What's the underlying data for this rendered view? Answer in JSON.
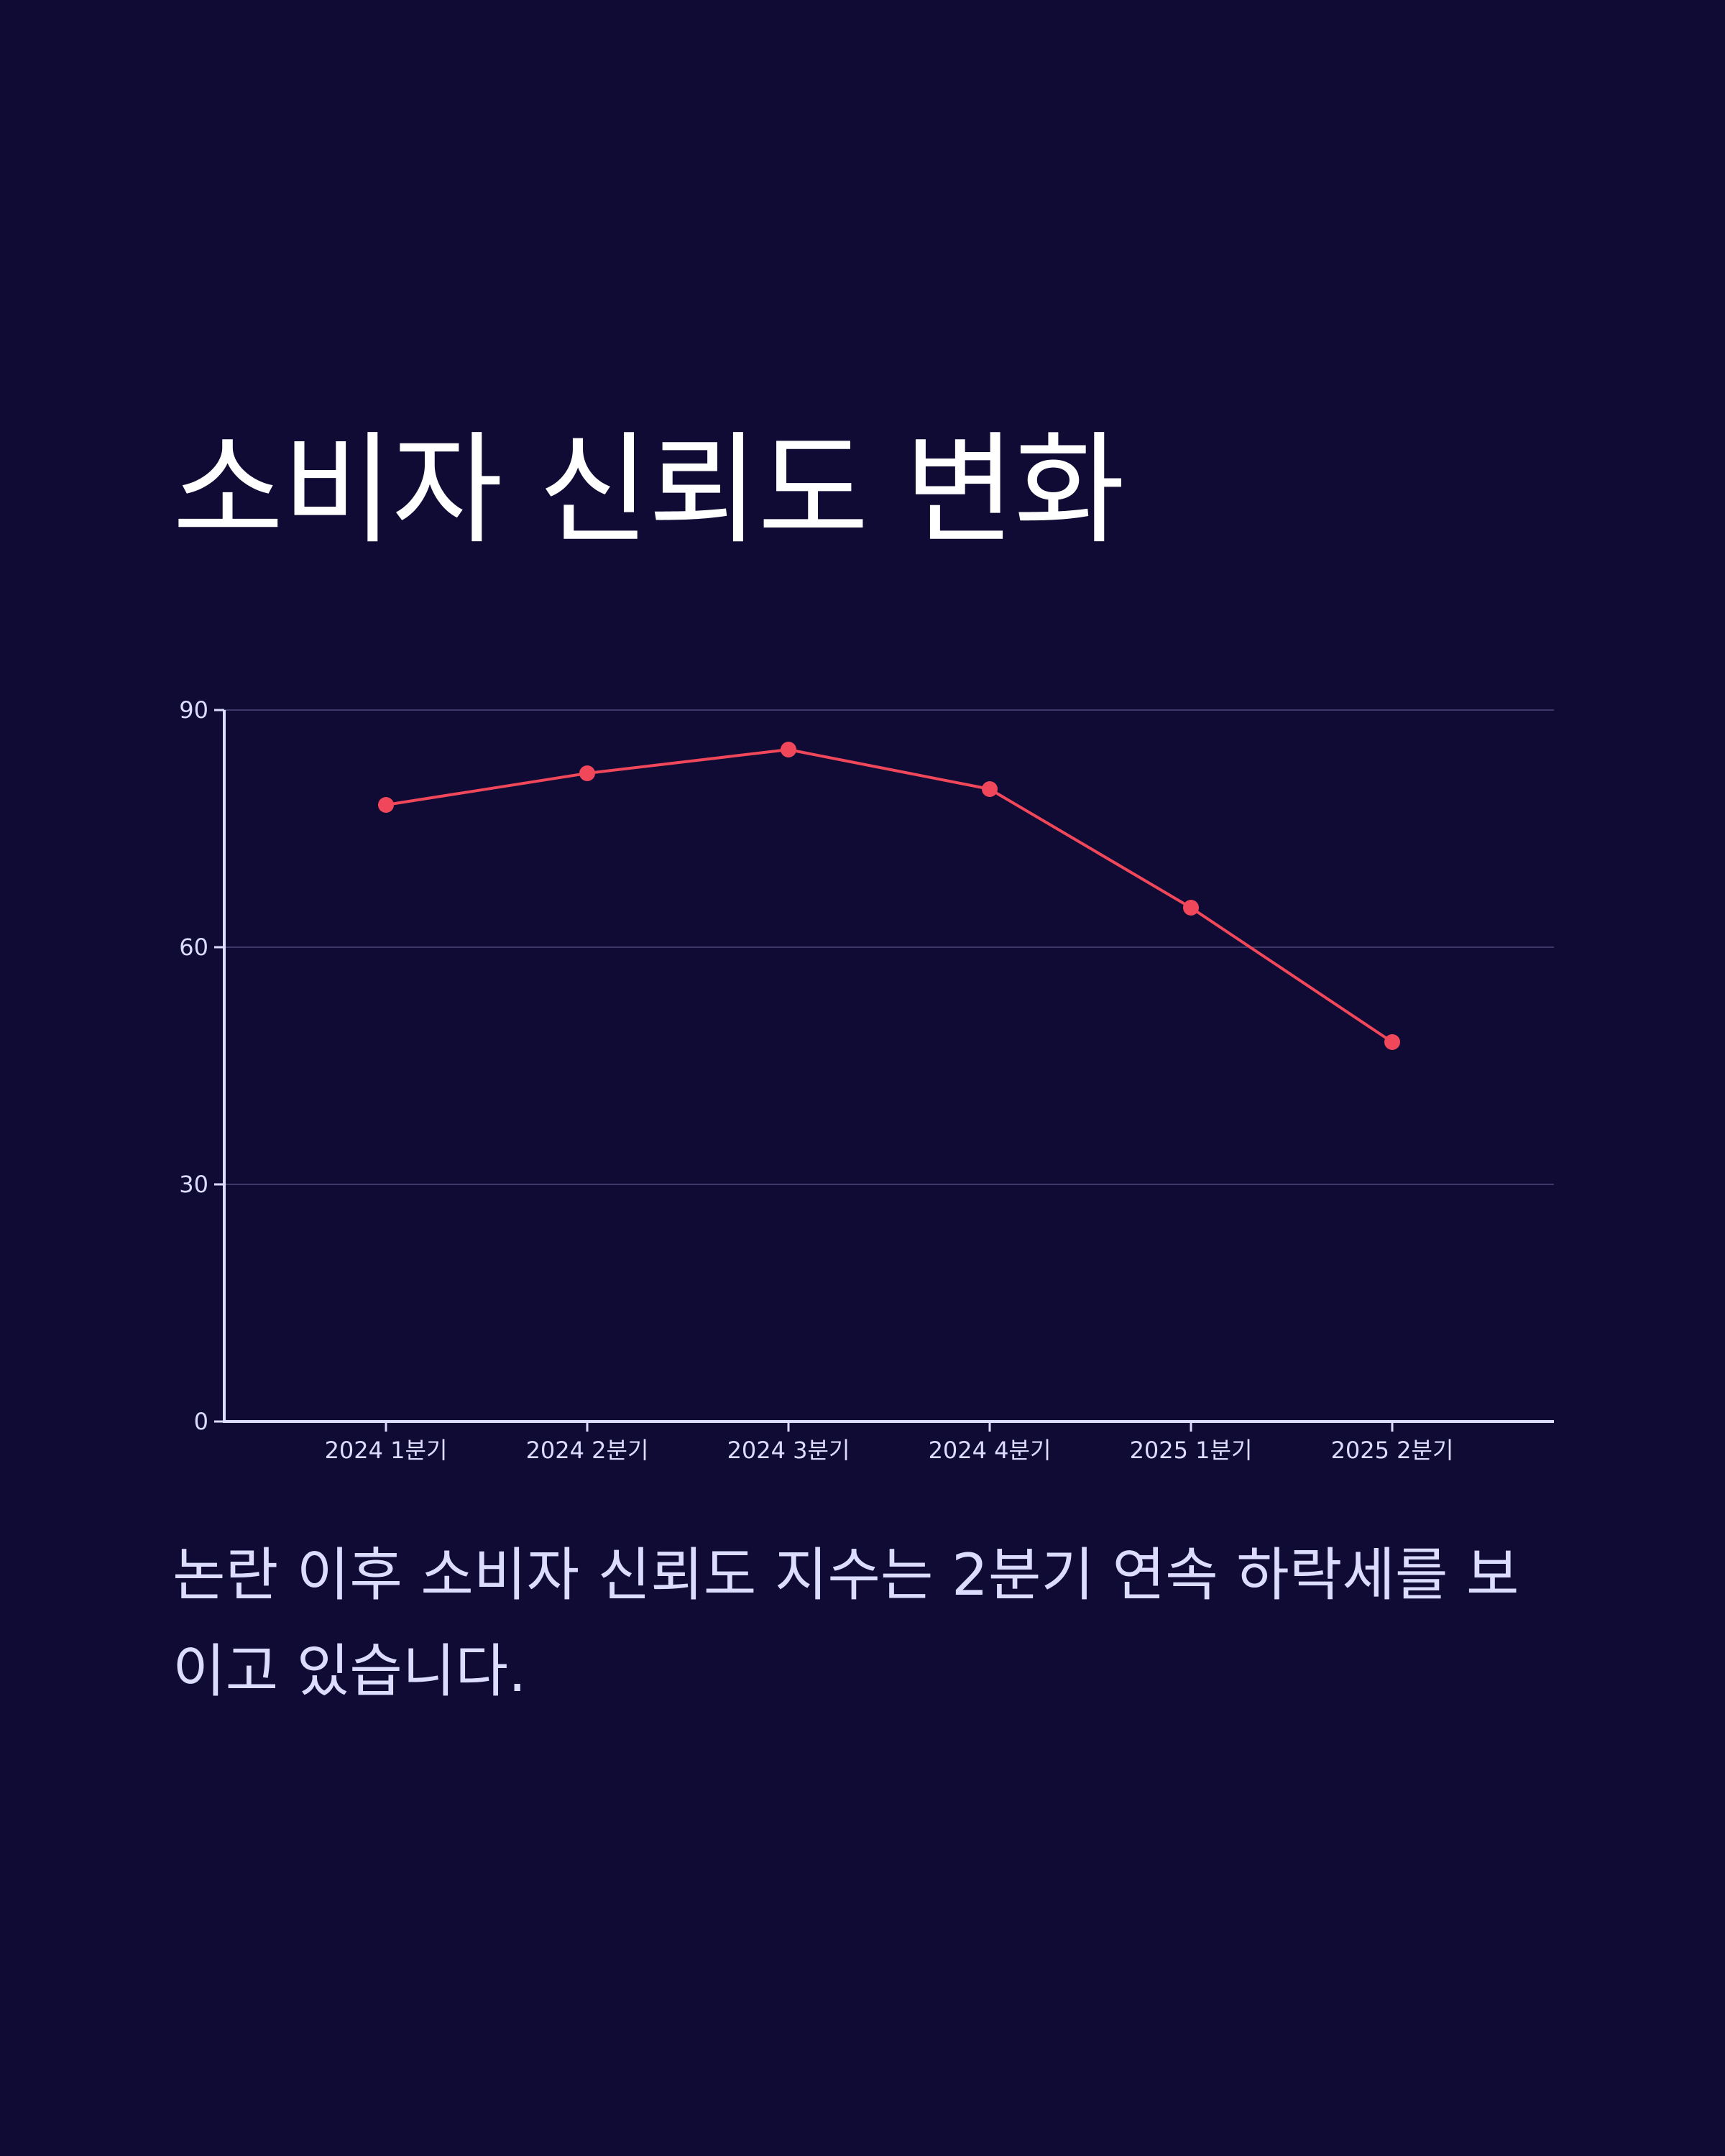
{
  "title": "소비자 신뢰도 변화",
  "caption": "논란 이후 소비자 신뢰도 지수는 2분기 연속 하락세를 보이고 있습니다.",
  "colors": {
    "background": "#100b34",
    "line": "#f0475a",
    "axis": "#dcdcff",
    "grid": "#3d3868",
    "text": "#ffffff"
  },
  "chart_data": {
    "type": "line",
    "title": "소비자 신뢰도 변화",
    "xlabel": "",
    "ylabel": "",
    "categories": [
      "2024 1분기",
      "2024 2분기",
      "2024 3분기",
      "2024 4분기",
      "2025 1분기",
      "2025 2분기"
    ],
    "series": [
      {
        "values": [
          78,
          82,
          85,
          80,
          65,
          48
        ]
      }
    ],
    "ylim": [
      0,
      90
    ],
    "yticks": [
      0,
      30,
      60,
      90
    ],
    "grid": true,
    "legend": "none"
  }
}
